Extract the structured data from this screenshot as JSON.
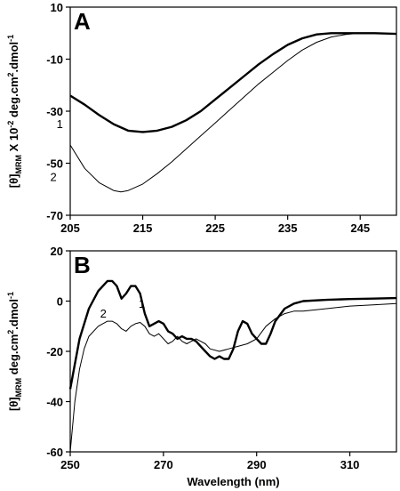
{
  "chart_data": [
    {
      "type": "line",
      "panel_label": "A",
      "ylabel_main": "[θ]",
      "ylabel_sub": "MRM",
      "ylabel_rest": " X 10",
      "ylabel_exp": "-2",
      "ylabel_units": " deg.cm",
      "ylabel_units_exp": "2",
      "ylabel_units_rest": ".dmol",
      "ylabel_units_exp2": "-1",
      "xlim": [
        205,
        250
      ],
      "ylim": [
        -70,
        10
      ],
      "xticks": [
        "205",
        "215",
        "225",
        "235",
        "245"
      ],
      "yticks": [
        "10",
        "-10",
        "-30",
        "-50",
        "-70"
      ],
      "series": [
        {
          "label": "1",
          "color": "#000000",
          "x": [
            205,
            207,
            209,
            211,
            213,
            215,
            217,
            219,
            221,
            223,
            225,
            227,
            229,
            231,
            233,
            235,
            237,
            239,
            241,
            243,
            245,
            247,
            250
          ],
          "y": [
            -24,
            -27.5,
            -31.5,
            -35,
            -37.5,
            -38,
            -37.5,
            -36,
            -33.5,
            -30,
            -25.5,
            -21,
            -16.5,
            -12,
            -8,
            -4.5,
            -2,
            -0.5,
            0,
            0,
            0,
            0,
            -0.3
          ]
        },
        {
          "label": "2",
          "color": "#000000",
          "x": [
            205,
            207,
            209,
            211,
            212,
            213,
            215,
            217,
            219,
            221,
            223,
            225,
            227,
            229,
            231,
            233,
            235,
            237,
            239,
            241,
            243,
            245,
            247,
            250
          ],
          "y": [
            -43,
            -52,
            -57.5,
            -60.5,
            -61,
            -60.5,
            -58,
            -54,
            -49.5,
            -44.5,
            -39.5,
            -34.5,
            -29.5,
            -24.5,
            -19.5,
            -15,
            -10.5,
            -6.5,
            -3.5,
            -1.5,
            -0.5,
            0,
            0,
            -0.3
          ]
        }
      ]
    },
    {
      "type": "line",
      "panel_label": "B",
      "ylabel_main": "[θ]",
      "ylabel_sub": "MRM",
      "ylabel_rest": " deg.cm",
      "ylabel_exp": "2",
      "ylabel_units": ".dmol",
      "ylabel_units_exp": "-1",
      "xlabel": "Wavelength (nm)",
      "xlim": [
        250,
        320
      ],
      "ylim": [
        -60,
        20
      ],
      "xticks": [
        "250",
        "270",
        "290",
        "310"
      ],
      "yticks": [
        "20",
        "0",
        "-20",
        "-40",
        "-60"
      ],
      "series": [
        {
          "label": "1",
          "color": "#000000",
          "x": [
            250,
            252,
            254,
            256,
            258,
            259,
            260,
            261,
            262,
            263,
            264,
            265,
            266,
            267,
            268,
            269,
            270,
            271,
            272,
            273,
            274,
            275,
            276,
            277,
            278,
            279,
            280,
            281,
            282,
            283,
            284,
            285,
            286,
            287,
            288,
            289,
            290,
            291,
            292,
            293,
            294,
            296,
            298,
            300,
            305,
            310,
            315,
            320
          ],
          "y": [
            -35,
            -15,
            -3,
            4,
            8,
            8,
            6,
            1,
            3,
            6,
            6,
            3,
            -5,
            -10,
            -9,
            -8,
            -9,
            -12,
            -13,
            -15,
            -14,
            -15,
            -15,
            -16,
            -18,
            -20,
            -22,
            -23,
            -22,
            -23,
            -23,
            -19,
            -12,
            -8,
            -9,
            -13,
            -15,
            -17,
            -17,
            -13,
            -8,
            -3,
            -1,
            0,
            0.5,
            0.8,
            1,
            1.2
          ]
        },
        {
          "label": "2",
          "color": "#000000",
          "x": [
            250,
            251,
            252,
            253,
            254,
            256,
            258,
            259,
            260,
            261,
            262,
            263,
            264,
            265,
            266,
            267,
            268,
            269,
            270,
            271,
            272,
            273,
            274,
            275,
            276,
            277,
            278,
            279,
            280,
            282,
            284,
            286,
            288,
            290,
            292,
            294,
            296,
            298,
            300,
            305,
            310,
            315,
            320
          ],
          "y": [
            -60,
            -40,
            -27,
            -19,
            -14,
            -10,
            -8,
            -8,
            -9,
            -11,
            -12,
            -10,
            -9,
            -8.5,
            -10,
            -13,
            -14,
            -13,
            -15,
            -17,
            -16,
            -14,
            -16,
            -17,
            -16,
            -15,
            -16,
            -17,
            -19,
            -20,
            -19,
            -18,
            -17,
            -15,
            -10,
            -7,
            -5,
            -4,
            -4,
            -3,
            -2,
            -1.5,
            -1
          ]
        }
      ]
    }
  ]
}
